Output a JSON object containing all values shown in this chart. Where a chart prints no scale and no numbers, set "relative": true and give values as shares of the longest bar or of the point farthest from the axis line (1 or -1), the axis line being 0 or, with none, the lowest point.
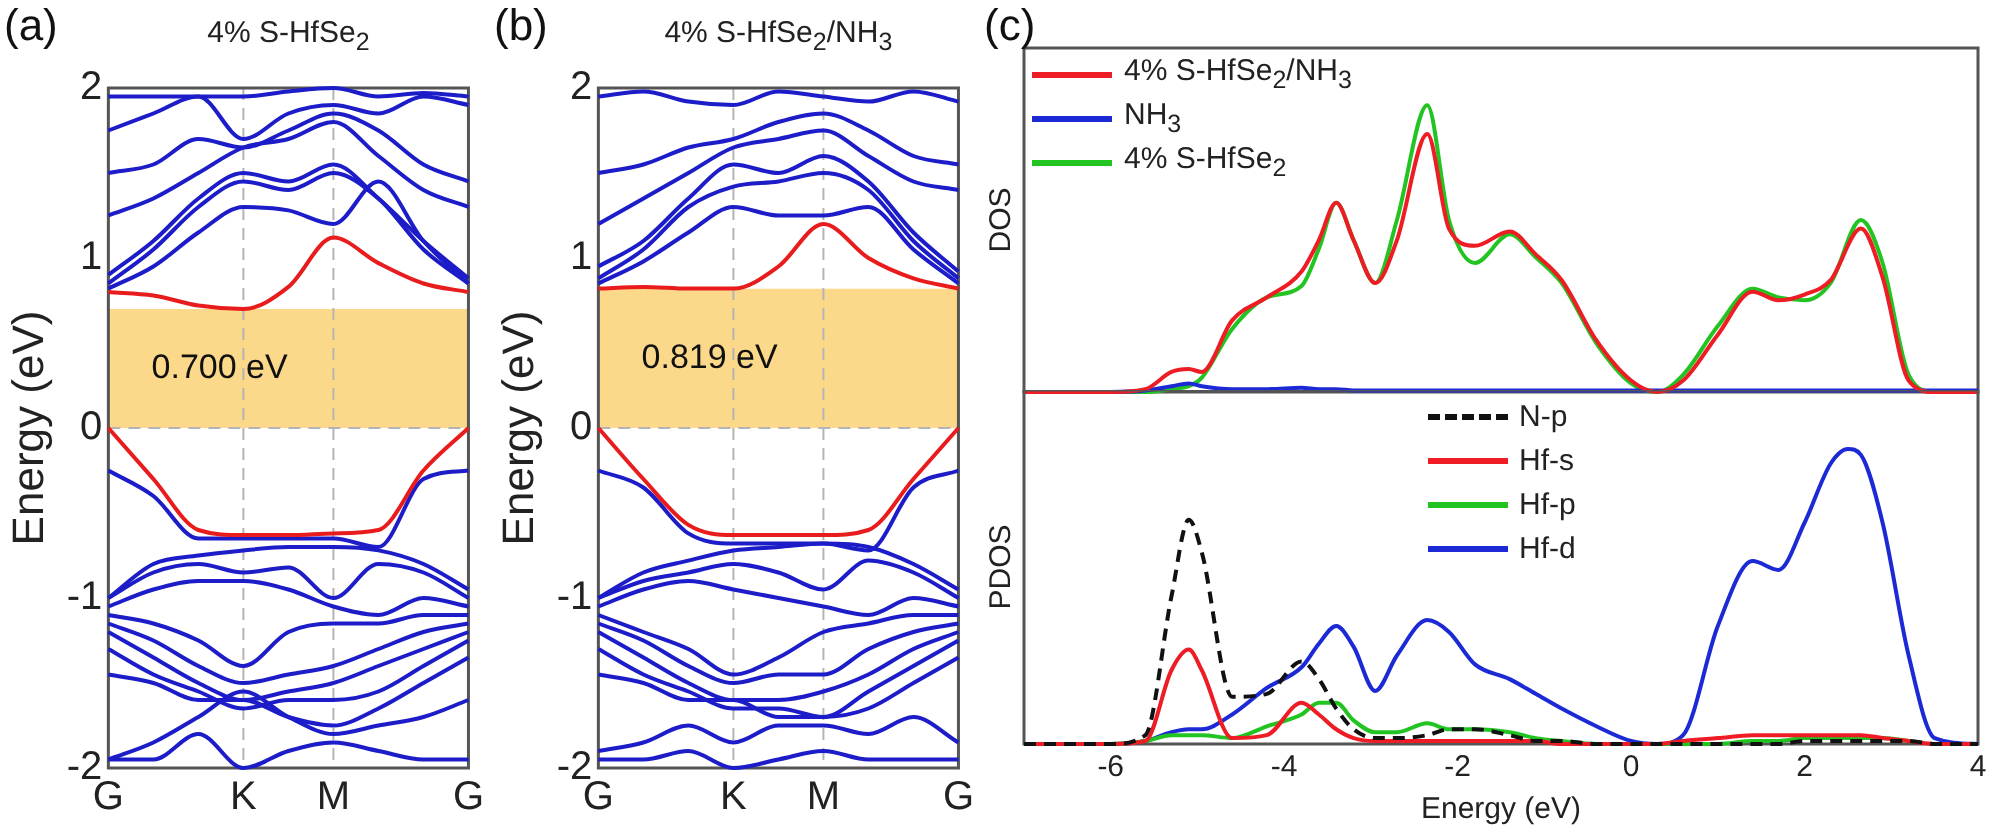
{
  "chart_data": [
    {
      "type": "line",
      "title": "4% S-HfSe$_{2}$",
      "ylabel": "Energy (eV)",
      "annotations": [
        "(a)"
      ],
      "marker": "none",
      "categories": [
        "G",
        null,
        null,
        "K",
        null,
        "M",
        null,
        null,
        "G"
      ],
      "ylim": [
        -2,
        2
      ],
      "yticks": [
        -2,
        -1,
        0,
        1,
        2
      ],
      "bands": [
        {
          "axis": "y",
          "from": 0,
          "to": 0.7,
          "label": "0.700 eV",
          "color": "#fcd98a"
        }
      ],
      "ref_lines": [
        {
          "axis": "x",
          "value": "K",
          "color": "#b4b4b4",
          "line_style": "dashed"
        },
        {
          "axis": "x",
          "value": "M",
          "color": "#b4b4b4",
          "line_style": "dashed"
        },
        {
          "axis": "y",
          "value": 0,
          "color": "#b4b4b4",
          "line_style": "dashed"
        }
      ],
      "series": [
        {
          "color": "#e81c1c",
          "values": [
            0.8,
            0.78,
            0.72,
            0.7,
            0.83,
            1.12,
            0.97,
            0.85,
            0.8
          ]
        },
        {
          "color": "#e81c1c",
          "values": [
            0,
            -0.3,
            -0.6,
            -0.63,
            -0.63,
            -0.62,
            -0.6,
            -0.25,
            0
          ]
        },
        {
          "color": "#1c1cc8",
          "values": [
            -0.25,
            -0.4,
            -0.65,
            -0.65,
            -0.65,
            -0.65,
            -0.7,
            -0.3,
            -0.25
          ]
        },
        {
          "color": "#1c1cc8",
          "values": [
            -1.0,
            -0.8,
            -0.75,
            -0.72,
            -0.7,
            -0.7,
            -0.72,
            -0.8,
            -0.95
          ]
        },
        {
          "color": "#1c1cc8",
          "values": [
            -1.0,
            -0.85,
            -0.8,
            -0.85,
            -0.82,
            -1.0,
            -0.8,
            -0.85,
            -1.0
          ]
        },
        {
          "color": "#1c1cc8",
          "values": [
            -1.05,
            -0.95,
            -0.9,
            -0.9,
            -0.95,
            -1.05,
            -1.1,
            -1.0,
            -1.05
          ]
        },
        {
          "color": "#1c1cc8",
          "values": [
            -1.1,
            -1.15,
            -1.25,
            -1.4,
            -1.2,
            -1.15,
            -1.15,
            -1.1,
            -1.1
          ]
        },
        {
          "color": "#1c1cc8",
          "values": [
            -1.15,
            -1.25,
            -1.4,
            -1.5,
            -1.45,
            -1.4,
            -1.3,
            -1.2,
            -1.15
          ]
        },
        {
          "color": "#1c1cc8",
          "values": [
            -1.2,
            -1.35,
            -1.5,
            -1.6,
            -1.55,
            -1.5,
            -1.4,
            -1.3,
            -1.2
          ]
        },
        {
          "color": "#1c1cc8",
          "values": [
            -1.3,
            -1.45,
            -1.55,
            -1.65,
            -1.6,
            -1.6,
            -1.55,
            -1.4,
            -1.25
          ]
        },
        {
          "color": "#1c1cc8",
          "values": [
            -1.45,
            -1.5,
            -1.6,
            -1.6,
            -1.7,
            -1.75,
            -1.65,
            -1.5,
            -1.35
          ]
        },
        {
          "color": "#1c1cc8",
          "values": [
            -1.95,
            -1.85,
            -1.7,
            -1.55,
            -1.7,
            -1.8,
            -1.75,
            -1.7,
            -1.6
          ]
        },
        {
          "color": "#1c1cc8",
          "values": [
            -1.95,
            -1.95,
            -1.8,
            -2.0,
            -1.9,
            -1.85,
            -1.9,
            -1.95,
            -1.95
          ]
        },
        {
          "color": "#1c1cc8",
          "values": [
            0.82,
            0.95,
            1.15,
            1.3,
            1.28,
            1.2,
            1.45,
            1.1,
            0.85
          ]
        },
        {
          "color": "#1c1cc8",
          "values": [
            0.85,
            1.05,
            1.3,
            1.45,
            1.4,
            1.5,
            1.35,
            1.05,
            0.85
          ]
        },
        {
          "color": "#1c1cc8",
          "values": [
            0.9,
            1.1,
            1.35,
            1.5,
            1.45,
            1.55,
            1.35,
            1.1,
            0.88
          ]
        },
        {
          "color": "#1c1cc8",
          "values": [
            1.25,
            1.35,
            1.5,
            1.65,
            1.7,
            1.8,
            1.6,
            1.4,
            1.3
          ]
        },
        {
          "color": "#1c1cc8",
          "values": [
            1.5,
            1.55,
            1.7,
            1.65,
            1.75,
            1.85,
            1.75,
            1.55,
            1.45
          ]
        },
        {
          "color": "#1c1cc8",
          "values": [
            1.75,
            1.85,
            1.95,
            1.7,
            1.85,
            1.9,
            1.85,
            1.95,
            1.9
          ]
        },
        {
          "color": "#1c1cc8",
          "values": [
            1.95,
            1.95,
            1.95,
            1.95,
            1.98,
            2.0,
            1.95,
            1.97,
            1.95
          ]
        }
      ]
    },
    {
      "type": "line",
      "title": "4% S-HfSe$_{2}$/NH$_{3}$",
      "ylabel": "Energy (eV)",
      "annotations": [
        "(b)"
      ],
      "marker": "none",
      "categories": [
        "G",
        null,
        null,
        "K",
        null,
        "M",
        null,
        null,
        "G"
      ],
      "ylim": [
        -2,
        2
      ],
      "yticks": [
        -2,
        -1,
        0,
        1,
        2
      ],
      "bands": [
        {
          "axis": "y",
          "from": 0,
          "to": 0.819,
          "label": "0.819 eV",
          "color": "#fcd98a"
        }
      ],
      "ref_lines": [
        {
          "axis": "x",
          "value": "K",
          "color": "#b4b4b4",
          "line_style": "dashed"
        },
        {
          "axis": "x",
          "value": "M",
          "color": "#b4b4b4",
          "line_style": "dashed"
        },
        {
          "axis": "y",
          "value": 0,
          "color": "#b4b4b4",
          "line_style": "dashed"
        }
      ],
      "series": [
        {
          "color": "#e81c1c",
          "values": [
            0.82,
            0.83,
            0.82,
            0.82,
            0.95,
            1.2,
            1.0,
            0.88,
            0.82
          ]
        },
        {
          "color": "#e81c1c",
          "values": [
            0,
            -0.3,
            -0.57,
            -0.63,
            -0.63,
            -0.63,
            -0.6,
            -0.3,
            0
          ]
        },
        {
          "color": "#1c1cc8",
          "values": [
            -0.25,
            -0.35,
            -0.62,
            -0.68,
            -0.68,
            -0.68,
            -0.72,
            -0.35,
            -0.25
          ]
        },
        {
          "color": "#1c1cc8",
          "values": [
            -1.0,
            -0.85,
            -0.78,
            -0.72,
            -0.7,
            -0.68,
            -0.7,
            -0.8,
            -0.95
          ]
        },
        {
          "color": "#1c1cc8",
          "values": [
            -1.0,
            -0.9,
            -0.85,
            -0.8,
            -0.85,
            -0.95,
            -0.78,
            -0.85,
            -1.0
          ]
        },
        {
          "color": "#1c1cc8",
          "values": [
            -1.05,
            -0.95,
            -0.9,
            -0.95,
            -1.0,
            -1.05,
            -1.1,
            -1.0,
            -1.05
          ]
        },
        {
          "color": "#1c1cc8",
          "values": [
            -1.1,
            -1.2,
            -1.3,
            -1.45,
            -1.35,
            -1.2,
            -1.15,
            -1.1,
            -1.1
          ]
        },
        {
          "color": "#1c1cc8",
          "values": [
            -1.15,
            -1.25,
            -1.4,
            -1.5,
            -1.45,
            -1.45,
            -1.3,
            -1.2,
            -1.15
          ]
        },
        {
          "color": "#1c1cc8",
          "values": [
            -1.2,
            -1.35,
            -1.5,
            -1.6,
            -1.6,
            -1.55,
            -1.45,
            -1.3,
            -1.2
          ]
        },
        {
          "color": "#1c1cc8",
          "values": [
            -1.3,
            -1.45,
            -1.55,
            -1.65,
            -1.65,
            -1.7,
            -1.55,
            -1.4,
            -1.25
          ]
        },
        {
          "color": "#1c1cc8",
          "values": [
            -1.45,
            -1.5,
            -1.6,
            -1.6,
            -1.7,
            -1.7,
            -1.65,
            -1.5,
            -1.35
          ]
        },
        {
          "color": "#1c1cc8",
          "values": [
            -1.9,
            -1.85,
            -1.75,
            -1.85,
            -1.75,
            -1.75,
            -1.8,
            -1.7,
            -1.85
          ]
        },
        {
          "color": "#1c1cc8",
          "values": [
            -1.95,
            -1.95,
            -1.9,
            -2.0,
            -1.95,
            -1.9,
            -1.95,
            -1.95,
            -1.95
          ]
        },
        {
          "color": "#1c1cc8",
          "values": [
            0.85,
            0.98,
            1.15,
            1.3,
            1.25,
            1.25,
            1.3,
            1.05,
            0.85
          ]
        },
        {
          "color": "#1c1cc8",
          "values": [
            0.88,
            1.05,
            1.3,
            1.42,
            1.45,
            1.5,
            1.4,
            1.1,
            0.88
          ]
        },
        {
          "color": "#1c1cc8",
          "values": [
            0.95,
            1.1,
            1.35,
            1.55,
            1.5,
            1.6,
            1.45,
            1.15,
            0.92
          ]
        },
        {
          "color": "#1c1cc8",
          "values": [
            1.2,
            1.35,
            1.5,
            1.65,
            1.7,
            1.75,
            1.6,
            1.45,
            1.4
          ]
        },
        {
          "color": "#1c1cc8",
          "values": [
            1.5,
            1.55,
            1.65,
            1.7,
            1.8,
            1.85,
            1.75,
            1.6,
            1.55
          ]
        },
        {
          "color": "#1c1cc8",
          "values": [
            1.95,
            1.98,
            1.92,
            1.9,
            1.98,
            1.95,
            1.92,
            1.98,
            1.92
          ]
        }
      ]
    },
    {
      "type": "line",
      "ylabel": "DOS",
      "annotations": [
        "(c)"
      ],
      "relative": true,
      "marker": "none",
      "legend": "top left",
      "tick_labels": false,
      "xlim": [
        -7,
        4
      ],
      "x": [
        -7,
        -6,
        -5.6,
        -5.3,
        -5.1,
        -4.95,
        -4.6,
        -4.2,
        -3.8,
        -3.6,
        -3.4,
        -3.2,
        -2.95,
        -2.7,
        -2.35,
        -2.1,
        -1.8,
        -1.4,
        -1.1,
        -0.8,
        -0.4,
        0,
        0.3,
        0.6,
        1.0,
        1.4,
        1.7,
        2.0,
        2.3,
        2.65,
        2.9,
        3.2,
        3.5,
        4
      ],
      "series": [
        {
          "name": "4% S-HfSe$_{2}$/NH$_{3}$",
          "color": "#ee1c24",
          "values": [
            0,
            0,
            0.01,
            0.07,
            0.08,
            0.07,
            0.25,
            0.33,
            0.42,
            0.53,
            0.66,
            0.53,
            0.38,
            0.53,
            0.9,
            0.57,
            0.51,
            0.56,
            0.48,
            0.39,
            0.18,
            0.04,
            0,
            0.04,
            0.2,
            0.35,
            0.32,
            0.34,
            0.39,
            0.57,
            0.4,
            0.04,
            0,
            0
          ]
        },
        {
          "name": "NH$_{3}$",
          "color": "#1c2ad6",
          "values": [
            0,
            0,
            0.005,
            0.02,
            0.03,
            0.02,
            0.01,
            0.01,
            0.015,
            0.01,
            0.01,
            0.005,
            0.005,
            0.005,
            0.005,
            0.005,
            0.005,
            0.005,
            0.005,
            0.005,
            0.005,
            0.005,
            0.005,
            0.005,
            0.005,
            0.005,
            0.005,
            0.005,
            0.005,
            0.005,
            0.005,
            0.005,
            0.005,
            0.005
          ]
        },
        {
          "name": "4% S-HfSe$_{2}$",
          "color": "#22c422",
          "values": [
            0,
            0,
            0,
            0.01,
            0.02,
            0.05,
            0.22,
            0.33,
            0.37,
            0.5,
            0.66,
            0.53,
            0.38,
            0.6,
            1,
            0.6,
            0.45,
            0.55,
            0.47,
            0.38,
            0.17,
            0.03,
            0,
            0.06,
            0.23,
            0.36,
            0.33,
            0.32,
            0.38,
            0.6,
            0.45,
            0.06,
            0,
            0
          ]
        }
      ]
    },
    {
      "type": "line",
      "ylabel": "PDOS",
      "xlabel": "Energy (eV)",
      "relative": true,
      "marker": "none",
      "legend": "top",
      "tick_labels": "x",
      "xlim": [
        -7,
        4
      ],
      "xticks": [
        -6,
        -4,
        -2,
        0,
        2,
        4
      ],
      "x": [
        -7,
        -6,
        -5.6,
        -5.3,
        -5.1,
        -4.95,
        -4.6,
        -4.2,
        -3.8,
        -3.6,
        -3.4,
        -3.2,
        -2.95,
        -2.7,
        -2.35,
        -2.1,
        -1.8,
        -1.4,
        -1.1,
        -0.8,
        -0.4,
        0,
        0.3,
        0.6,
        1.0,
        1.4,
        1.7,
        2.0,
        2.3,
        2.5,
        2.65,
        2.9,
        3.2,
        3.5,
        4
      ],
      "series": [
        {
          "name": "N-p",
          "color": "#111111",
          "line_style": "dashed",
          "values": [
            0,
            0,
            0.03,
            0.5,
            0.76,
            0.65,
            0.16,
            0.17,
            0.28,
            0.22,
            0.12,
            0.05,
            0.02,
            0.02,
            0.03,
            0.05,
            0.05,
            0.03,
            0.01,
            0.01,
            0,
            0,
            0,
            0,
            0,
            0,
            0,
            0.01,
            0.01,
            0.01,
            0.01,
            0.01,
            0.01,
            0,
            0
          ]
        },
        {
          "name": "Hf-s",
          "color": "#ee1c24",
          "values": [
            0,
            0,
            0.01,
            0.25,
            0.32,
            0.25,
            0.02,
            0.03,
            0.14,
            0.1,
            0.05,
            0.02,
            0.01,
            0.01,
            0.01,
            0.01,
            0.01,
            0.01,
            0.01,
            0,
            0,
            0,
            0,
            0.01,
            0.02,
            0.03,
            0.03,
            0.03,
            0.03,
            0.03,
            0.03,
            0.02,
            0.01,
            0,
            0
          ]
        },
        {
          "name": "Hf-p",
          "color": "#22c422",
          "values": [
            0,
            0,
            0.01,
            0.03,
            0.03,
            0.03,
            0.02,
            0.06,
            0.1,
            0.14,
            0.14,
            0.08,
            0.04,
            0.04,
            0.07,
            0.05,
            0.05,
            0.04,
            0.02,
            0.01,
            0,
            0,
            0,
            0,
            0,
            0.01,
            0.01,
            0.02,
            0.02,
            0.02,
            0.02,
            0.02,
            0.01,
            null,
            null
          ]
        },
        {
          "name": "Hf-d",
          "color": "#1c2ad6",
          "values": [
            0,
            0,
            0.01,
            0.04,
            0.05,
            0.05,
            0.1,
            0.19,
            0.26,
            0.34,
            0.4,
            0.33,
            0.18,
            0.3,
            0.42,
            0.38,
            0.27,
            0.22,
            0.17,
            0.12,
            0.06,
            0.01,
            0,
            0.03,
            0.4,
            0.62,
            0.59,
            0.75,
            0.95,
            1,
            0.98,
            0.75,
            0.3,
            0.02,
            0
          ]
        }
      ]
    }
  ]
}
